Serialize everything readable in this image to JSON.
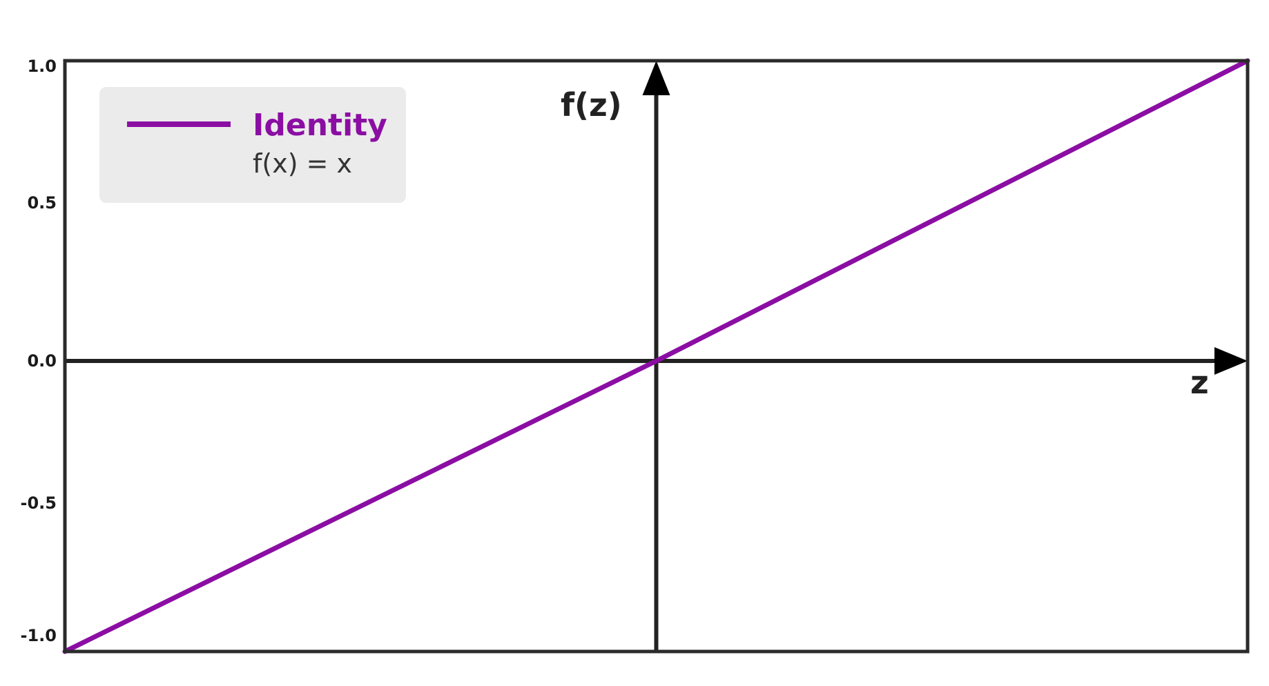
{
  "chart_data": {
    "type": "line",
    "title": "",
    "xlabel": "z",
    "ylabel": "f(z)",
    "xlim": [
      -1,
      1
    ],
    "ylim": [
      -1.0,
      1.0
    ],
    "yticks": [
      "1.0",
      "0.5",
      "0.0",
      "-0.5",
      "-1.0"
    ],
    "ytick_values": [
      1.0,
      0.5,
      0.0,
      -0.5,
      -1.0
    ],
    "grid": false,
    "legend_placement": "top-left",
    "series": [
      {
        "name": "Identity",
        "formula": "f(x) = x",
        "color": "#8b0ea3",
        "x": [
          -1,
          0,
          1
        ],
        "y": [
          -1,
          0,
          1
        ]
      }
    ],
    "colors": {
      "frame": "#2b2b2b",
      "axes": "#222222",
      "legend_bg": "#ebebeb"
    }
  }
}
